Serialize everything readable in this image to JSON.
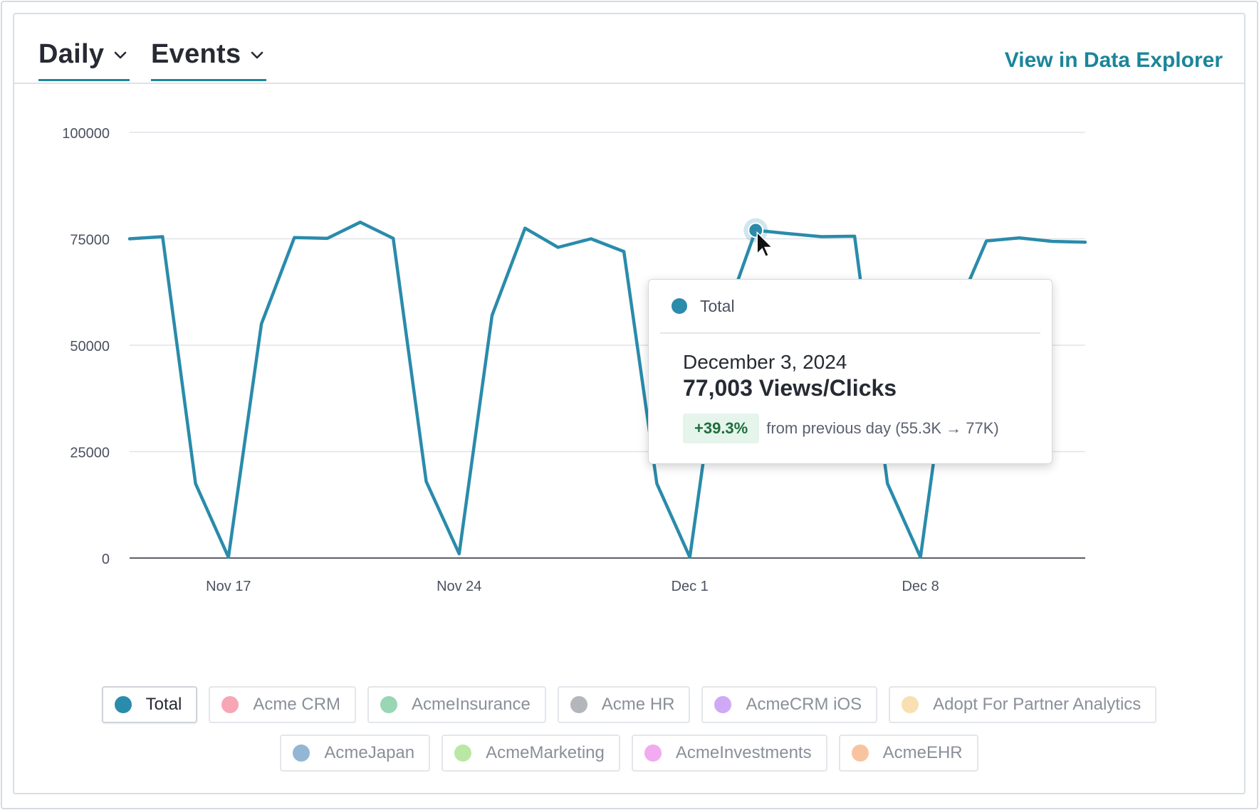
{
  "header": {
    "interval_label": "Daily",
    "metric_label": "Events",
    "explore_link": "View in Data Explorer"
  },
  "chart_data": {
    "type": "line",
    "x_unit": "date",
    "ylim": [
      0,
      100000
    ],
    "yticks": [
      0,
      25000,
      50000,
      75000,
      100000
    ],
    "xticks": [
      {
        "date": "2024-11-17",
        "label": "Nov 17"
      },
      {
        "date": "2024-11-24",
        "label": "Nov 24"
      },
      {
        "date": "2024-12-01",
        "label": "Dec 1"
      },
      {
        "date": "2024-12-08",
        "label": "Dec 8"
      }
    ],
    "grid": true,
    "series": [
      {
        "name": "Total",
        "color": "#2a8bab",
        "x": [
          "2024-11-14",
          "2024-11-15",
          "2024-11-16",
          "2024-11-17",
          "2024-11-18",
          "2024-11-19",
          "2024-11-20",
          "2024-11-21",
          "2024-11-22",
          "2024-11-23",
          "2024-11-24",
          "2024-11-25",
          "2024-11-26",
          "2024-11-27",
          "2024-11-28",
          "2024-11-29",
          "2024-11-30",
          "2024-12-01",
          "2024-12-02",
          "2024-12-03",
          "2024-12-04",
          "2024-12-05",
          "2024-12-06",
          "2024-12-07",
          "2024-12-08",
          "2024-12-09",
          "2024-12-10",
          "2024-12-11",
          "2024-12-12",
          "2024-12-13"
        ],
        "values": [
          75000,
          75500,
          17500,
          200,
          55000,
          75300,
          75100,
          78900,
          75100,
          18000,
          1000,
          57000,
          77500,
          73000,
          75000,
          72000,
          17500,
          200,
          55300,
          77003,
          76200,
          75500,
          75600,
          17500,
          200,
          56500,
          74500,
          75200,
          74400,
          74200
        ]
      }
    ]
  },
  "tooltip": {
    "series": "Total",
    "date": "December 3, 2024",
    "value": "77,003 Views/Clicks",
    "change": "+39.3%",
    "note": "from previous day (55.3K → 77K)"
  },
  "highlight": {
    "date": "2024-12-03",
    "value": 77003
  },
  "legend": {
    "row1": [
      {
        "label": "Total",
        "color": "#2a8bab",
        "active": true
      },
      {
        "label": "Acme CRM",
        "color": "#f7a6b6"
      },
      {
        "label": "AcmeInsurance",
        "color": "#98d6b4"
      },
      {
        "label": "Acme HR",
        "color": "#b3b6bb"
      },
      {
        "label": "AcmeCRM iOS",
        "color": "#cfa9f6"
      },
      {
        "label": "Adopt For Partner Analytics",
        "color": "#f8e0b3"
      }
    ],
    "row2": [
      {
        "label": "AcmeJapan",
        "color": "#93b6d4"
      },
      {
        "label": "AcmeMarketing",
        "color": "#b9e8a4"
      },
      {
        "label": "AcmeInvestments",
        "color": "#f2aaf0"
      },
      {
        "label": "AcmeEHR",
        "color": "#f8c49f"
      }
    ]
  }
}
